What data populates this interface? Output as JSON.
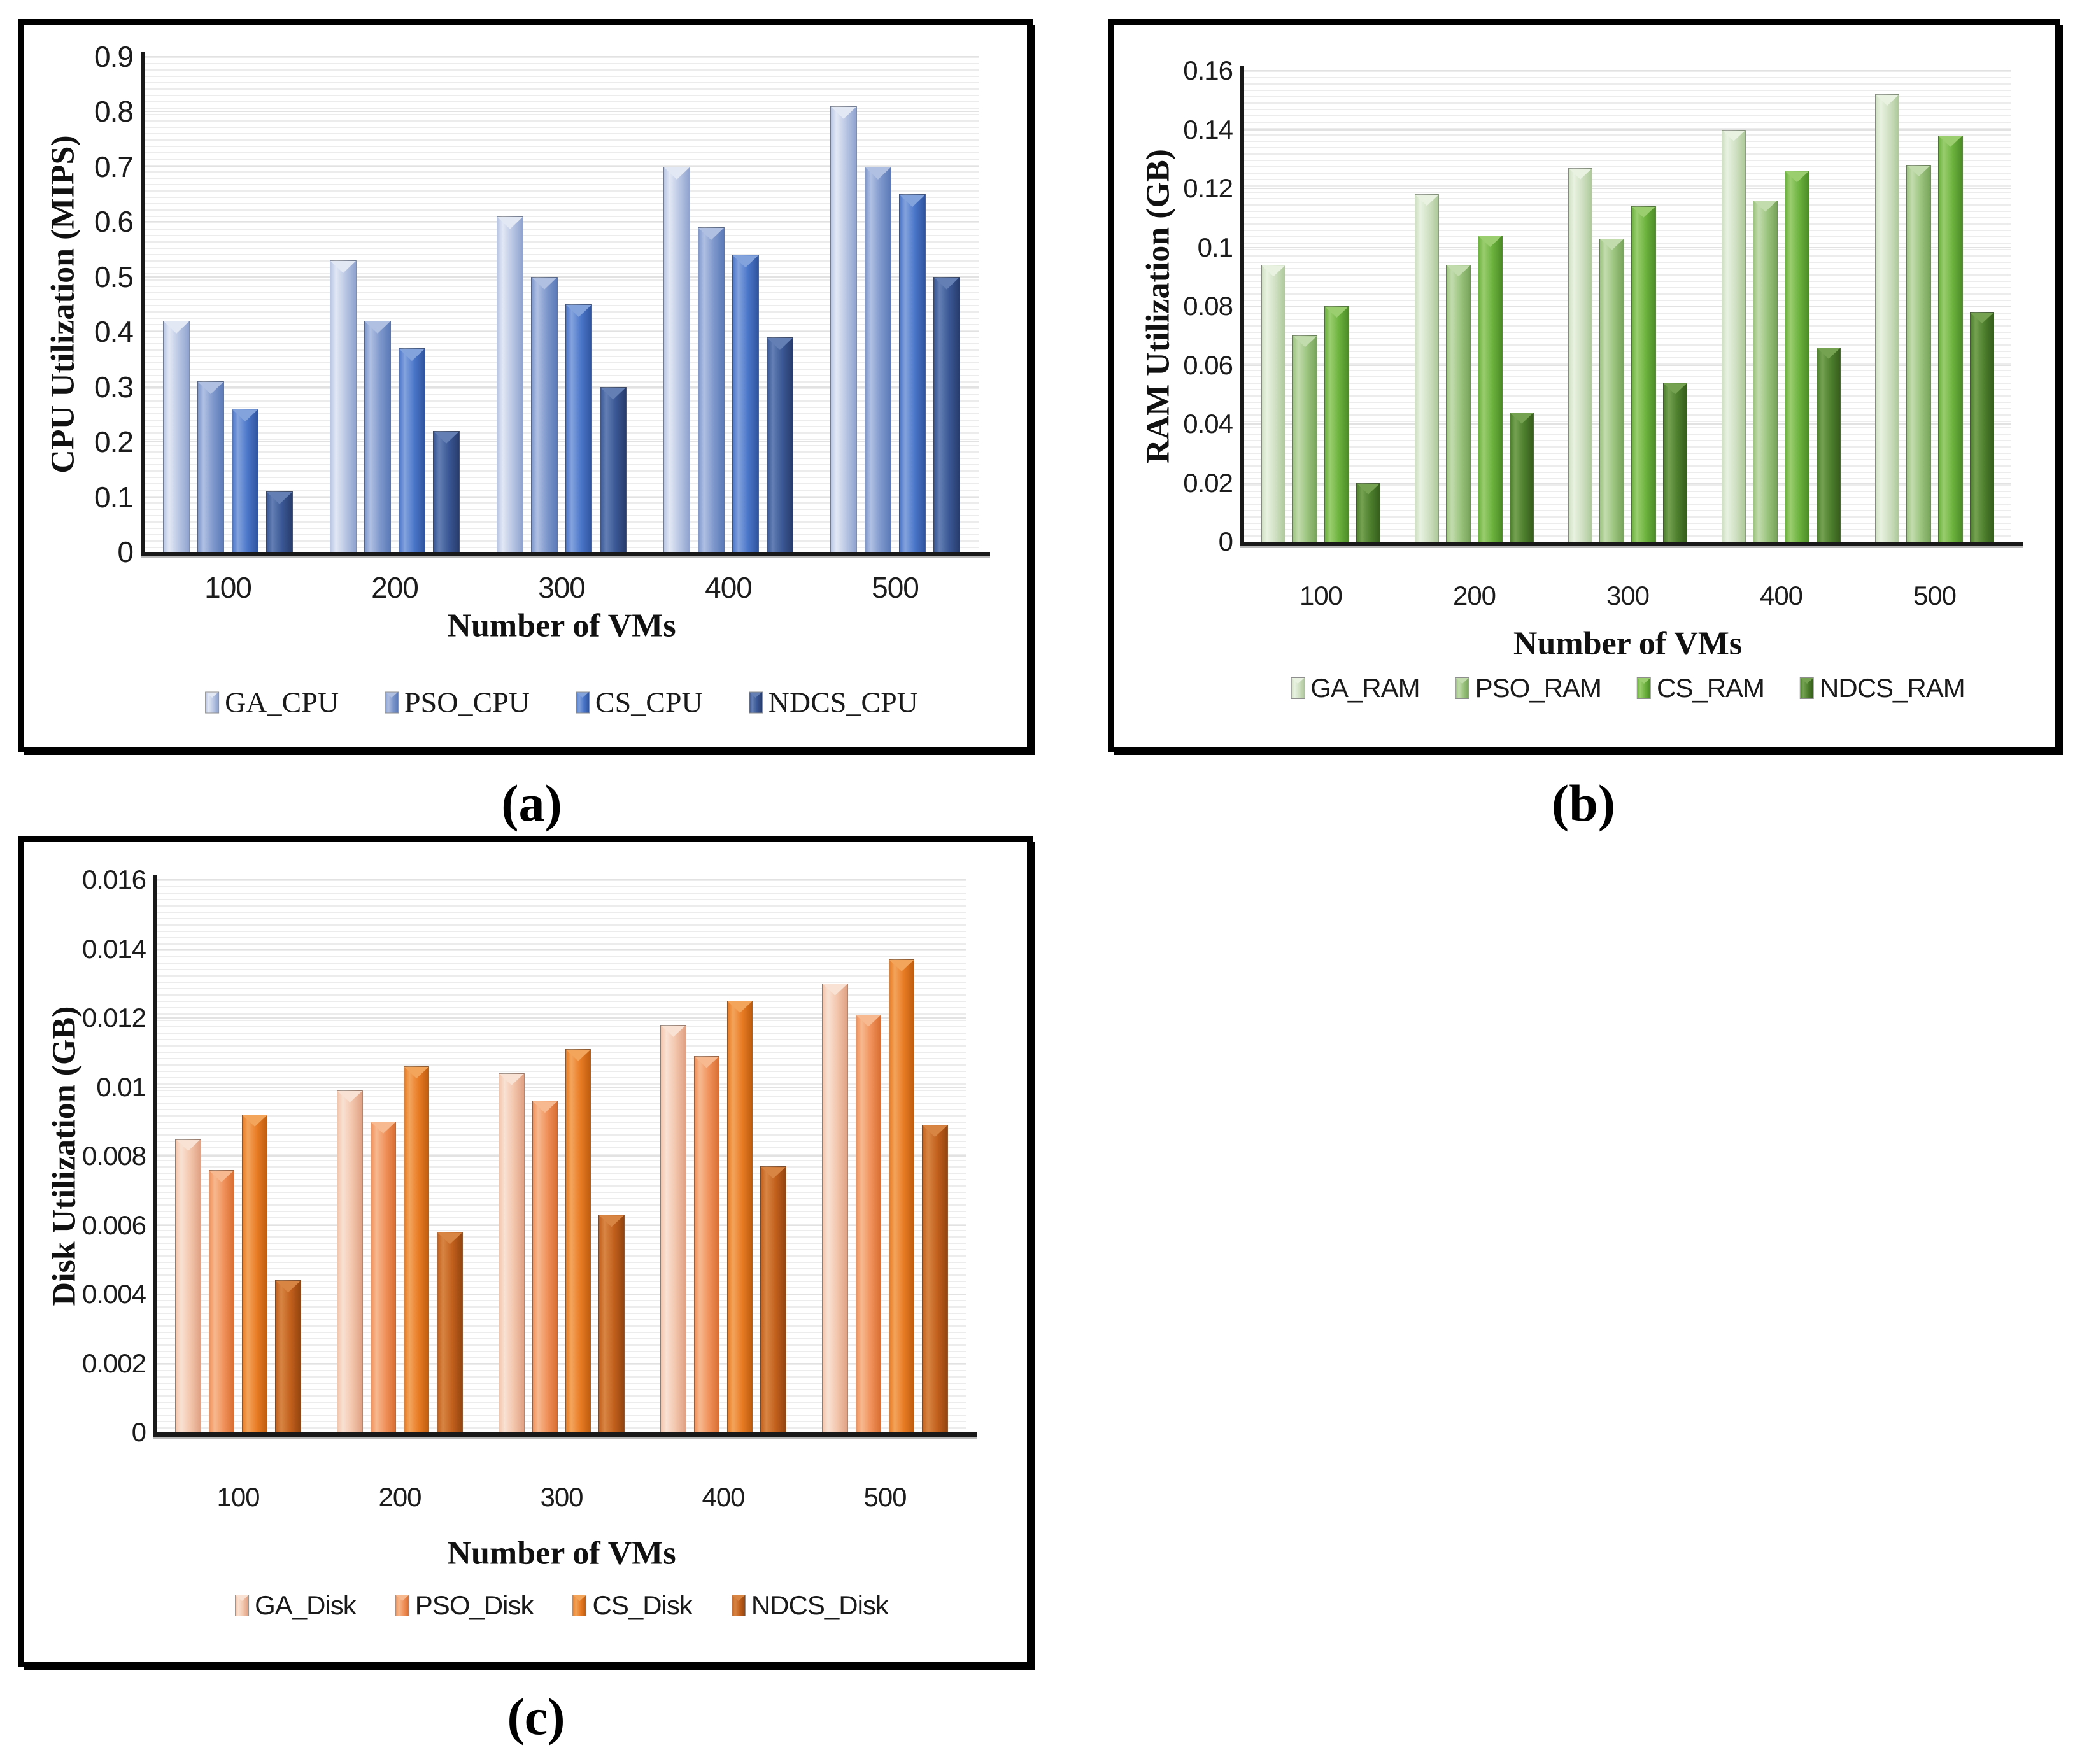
{
  "captions": {
    "a": "(a)",
    "b": "(b)",
    "c": "(c)"
  },
  "chart_data": [
    {
      "type": "bar",
      "ylabel": "CPU Utilization (MIPS)",
      "xlabel": "Number of VMs",
      "categories": [
        "100",
        "200",
        "300",
        "400",
        "500"
      ],
      "ylim": [
        0,
        0.9
      ],
      "yticks": [
        "0",
        "0.1",
        "0.2",
        "0.3",
        "0.4",
        "0.5",
        "0.6",
        "0.7",
        "0.8",
        "0.9"
      ],
      "grid": true,
      "legend_position": "bottom",
      "series": [
        {
          "name": "GA_CPU",
          "values": [
            0.42,
            0.53,
            0.61,
            0.7,
            0.81
          ],
          "color": "#b9c6e3",
          "color_light": "#e2e8f4",
          "color_dark": "#8fa3cf"
        },
        {
          "name": "PSO_CPU",
          "values": [
            0.31,
            0.42,
            0.5,
            0.59,
            0.7
          ],
          "color": "#7e98cc",
          "color_light": "#b0c0e2",
          "color_dark": "#5c7ab8"
        },
        {
          "name": "CS_CPU",
          "values": [
            0.26,
            0.37,
            0.45,
            0.54,
            0.65
          ],
          "color": "#4a76c9",
          "color_light": "#83a3dc",
          "color_dark": "#30549e"
        },
        {
          "name": "NDCS_CPU",
          "values": [
            0.11,
            0.22,
            0.3,
            0.39,
            0.5
          ],
          "color": "#3a5795",
          "color_light": "#637fb4",
          "color_dark": "#273c6b"
        }
      ]
    },
    {
      "type": "bar",
      "ylabel": "RAM Utilization (GB)",
      "xlabel": "Number of VMs",
      "categories": [
        "100",
        "200",
        "300",
        "400",
        "500"
      ],
      "ylim": [
        0,
        0.16
      ],
      "yticks": [
        "0",
        "0.02",
        "0.04",
        "0.06",
        "0.08",
        "0.1",
        "0.12",
        "0.14",
        "0.16"
      ],
      "grid": true,
      "legend_position": "bottom",
      "series": [
        {
          "name": "GA_RAM",
          "values": [
            0.094,
            0.118,
            0.127,
            0.14,
            0.152
          ],
          "color": "#cfe0c2",
          "color_light": "#e9f2e1",
          "color_dark": "#aec99a"
        },
        {
          "name": "PSO_RAM",
          "values": [
            0.07,
            0.094,
            0.103,
            0.116,
            0.128
          ],
          "color": "#9bc47e",
          "color_light": "#c3dcae",
          "color_dark": "#77a45a"
        },
        {
          "name": "CS_RAM",
          "values": [
            0.08,
            0.104,
            0.114,
            0.126,
            0.138
          ],
          "color": "#6cb23e",
          "color_light": "#9ace6f",
          "color_dark": "#4c8c26"
        },
        {
          "name": "NDCS_RAM",
          "values": [
            0.02,
            0.044,
            0.054,
            0.066,
            0.078
          ],
          "color": "#4d7f2d",
          "color_light": "#74a251",
          "color_dark": "#365e1c"
        }
      ]
    },
    {
      "type": "bar",
      "ylabel": "Disk Utilization (GB)",
      "xlabel": "Number of VMs",
      "categories": [
        "100",
        "200",
        "300",
        "400",
        "500"
      ],
      "ylim": [
        0,
        0.016
      ],
      "yticks": [
        "0",
        "0.002",
        "0.004",
        "0.006",
        "0.008",
        "0.01",
        "0.012",
        "0.014",
        "0.016"
      ],
      "grid": true,
      "legend_position": "bottom",
      "series": [
        {
          "name": "GA_Disk",
          "values": [
            0.0085,
            0.0099,
            0.0104,
            0.0118,
            0.013
          ],
          "color": "#f2c5ab",
          "color_light": "#f9e2d3",
          "color_dark": "#e0a184"
        },
        {
          "name": "PSO_Disk",
          "values": [
            0.0076,
            0.009,
            0.0096,
            0.0109,
            0.0121
          ],
          "color": "#f0915a",
          "color_light": "#f7b98f",
          "color_dark": "#d96f33"
        },
        {
          "name": "CS_Disk",
          "values": [
            0.0092,
            0.0106,
            0.0111,
            0.0125,
            0.0137
          ],
          "color": "#e87b24",
          "color_light": "#f3a55c",
          "color_dark": "#bf5d0f"
        },
        {
          "name": "NDCS_Disk",
          "values": [
            0.0044,
            0.0058,
            0.0063,
            0.0077,
            0.0089
          ],
          "color": "#c2601d",
          "color_light": "#d88544",
          "color_dark": "#94450f"
        }
      ]
    }
  ]
}
